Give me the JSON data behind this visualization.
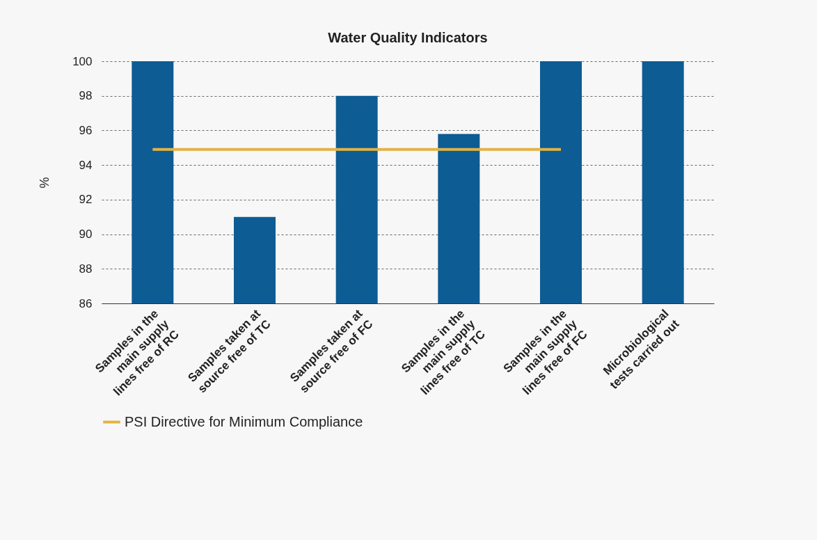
{
  "chart_data": {
    "type": "bar",
    "title": "Water Quality Indicators",
    "ylabel": "%",
    "categories": [
      "Samples in the\nmain supply\nlines free of RC",
      "Samples taken at\nsource free of TC",
      "Samples taken at\nsource free of FC",
      "Samples in the\nmain supply\nlines free of TC",
      "Samples in the\nmain supply\nlines free of FC",
      "Microbiological\ntests carried out"
    ],
    "series": [
      {
        "color": "#0d5c94",
        "values": [
          100,
          91,
          98,
          95.8,
          100,
          100
        ]
      },
      {
        "type": "line",
        "name": "PSI Directive for Minimum Compliance",
        "color": "#e3b343",
        "values": [
          94.9,
          94.9,
          94.9,
          94.9,
          94.9,
          null
        ]
      }
    ],
    "ylim": [
      86,
      100
    ],
    "yticks": [
      86,
      88,
      90,
      92,
      94,
      96,
      98,
      100
    ],
    "grid": "y",
    "legend": "bottom"
  }
}
